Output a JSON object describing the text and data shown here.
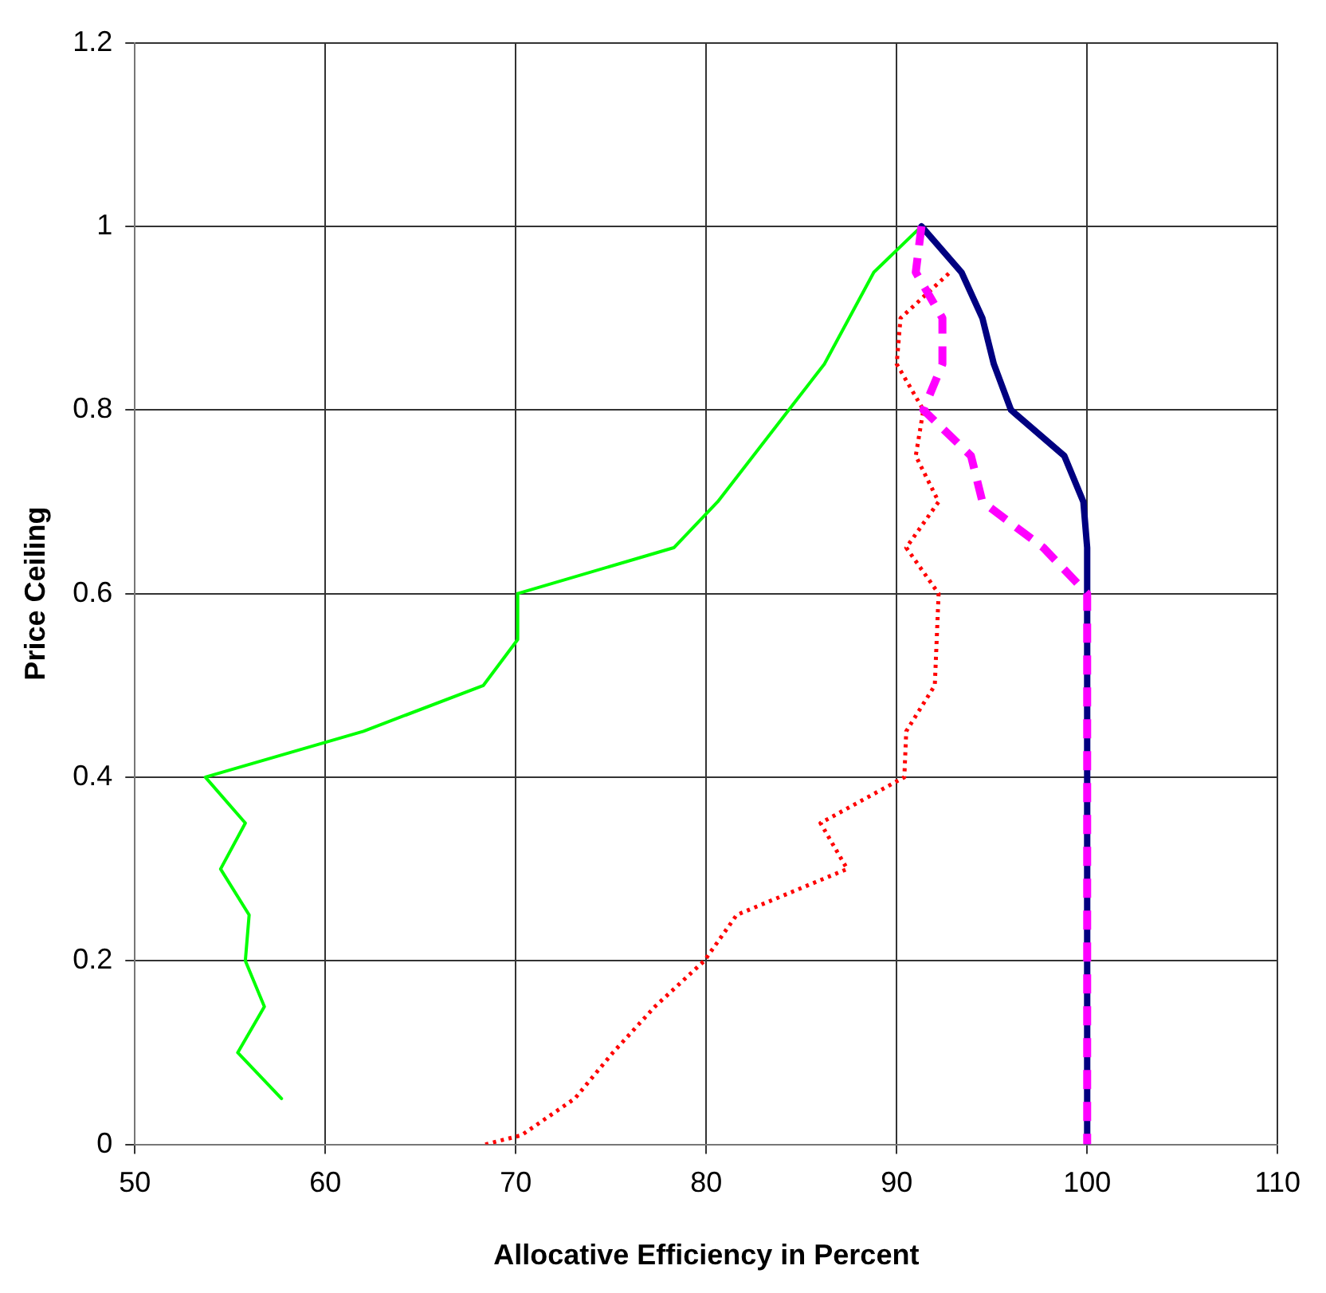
{
  "chart_data": {
    "type": "line",
    "xlabel": "Allocative Efficiency in Percent",
    "ylabel": "Price Ceiling",
    "xlim": [
      50,
      110
    ],
    "xticks": [
      50,
      60,
      70,
      80,
      90,
      100,
      110
    ],
    "ylim": [
      0,
      1.2
    ],
    "yticks": [
      0,
      0.2,
      0.4,
      0.6,
      0.8,
      1,
      1.2
    ],
    "grid": true,
    "legend": false,
    "marker": "none",
    "series": [
      {
        "color": "#00ff00",
        "line_style": "solid",
        "x": [
          91.3,
          88.8,
          86.2,
          80.6,
          78.3,
          70.1,
          70.1,
          68.3,
          62.0,
          53.7,
          55.8,
          54.5,
          56.0,
          55.8,
          56.8,
          55.4,
          57.7
        ],
        "values": [
          1.0,
          0.95,
          0.85,
          0.7,
          0.65,
          0.6,
          0.55,
          0.5,
          0.45,
          0.4,
          0.35,
          0.3,
          0.25,
          0.2,
          0.15,
          0.1,
          0.05
        ]
      },
      {
        "color": "#ff0000",
        "line_style": "dotted",
        "x": [
          68.4,
          70.3,
          73.1,
          75.1,
          77.3,
          79.9,
          81.6,
          87.4,
          86.0,
          90.4,
          90.5,
          92.0,
          92.2,
          90.5,
          92.2,
          91.0,
          91.4,
          90.0,
          90.2,
          92.8
        ],
        "values": [
          0,
          0.01,
          0.05,
          0.1,
          0.15,
          0.2,
          0.25,
          0.3,
          0.35,
          0.4,
          0.45,
          0.5,
          0.6,
          0.65,
          0.7,
          0.75,
          0.8,
          0.85,
          0.9,
          0.95
        ]
      },
      {
        "color": "#000080",
        "line_style": "solid",
        "x": [
          91.3,
          93.4,
          94.5,
          95.1,
          96.0,
          98.8,
          99.8,
          100,
          100
        ],
        "values": [
          1.0,
          0.95,
          0.9,
          0.85,
          0.8,
          0.75,
          0.7,
          0.65,
          0
        ]
      },
      {
        "color": "#ff00ff",
        "line_style": "dashed",
        "x": [
          91.3,
          91.0,
          92.4,
          92.4,
          91.4,
          93.9,
          94.5,
          97.7,
          100,
          100
        ],
        "values": [
          1.0,
          0.95,
          0.9,
          0.85,
          0.8,
          0.75,
          0.7,
          0.65,
          0.6,
          0
        ]
      }
    ]
  }
}
